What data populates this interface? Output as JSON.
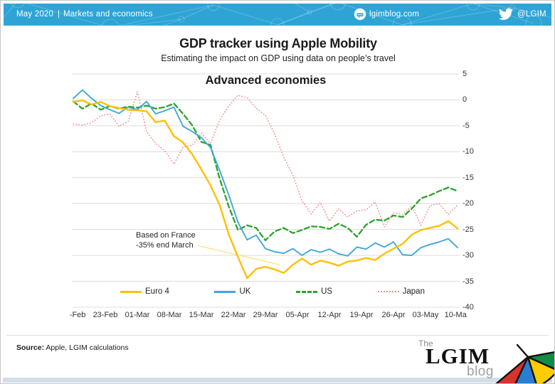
{
  "header": {
    "date": "May 2020",
    "pipe": "|",
    "section": "Markets and economics",
    "site": "lgimblog.com",
    "twitter_handle": "@LGIM"
  },
  "titles": {
    "main": "GDP tracker using Apple Mobility",
    "subtitle": "Estimating the impact on GDP using data on people’s travel"
  },
  "chart_data": {
    "type": "line",
    "title": "Advanced economies",
    "xlabel": "",
    "ylabel": "",
    "ylim": [
      -40,
      5
    ],
    "grid": "horizontal",
    "legend_position": "bottom",
    "x_unit": "days since 16-Feb-2020",
    "x_days": [
      0,
      2,
      4,
      6,
      8,
      10,
      12,
      14,
      16,
      18,
      20,
      22,
      24,
      26,
      28,
      30,
      32,
      34,
      36,
      38,
      40,
      42,
      44,
      46,
      48,
      50,
      52,
      54,
      56,
      58,
      60,
      62,
      64,
      66,
      68,
      70,
      72,
      74,
      76,
      78,
      80,
      82,
      84
    ],
    "xticks": [
      {
        "day": 0,
        "label": "16-Feb"
      },
      {
        "day": 7,
        "label": "23-Feb"
      },
      {
        "day": 14,
        "label": "01-Mar"
      },
      {
        "day": 21,
        "label": "08-Mar"
      },
      {
        "day": 28,
        "label": "15-Mar"
      },
      {
        "day": 35,
        "label": "22-Mar"
      },
      {
        "day": 42,
        "label": "29-Mar"
      },
      {
        "day": 49,
        "label": "05-Apr"
      },
      {
        "day": 56,
        "label": "12-Apr"
      },
      {
        "day": 63,
        "label": "19-Apr"
      },
      {
        "day": 70,
        "label": "26-Apr"
      },
      {
        "day": 77,
        "label": "03-May"
      },
      {
        "day": 84,
        "label": "10-May"
      }
    ],
    "yticks": [
      5,
      0,
      -5,
      -10,
      -15,
      -20,
      -25,
      -30,
      -35,
      -40
    ],
    "series": [
      {
        "name": "Japan",
        "color": "#f48c8c",
        "style": "dotted",
        "width": 1.5,
        "values": [
          -4.6,
          -4.9,
          -4.4,
          -3.1,
          -2.7,
          -5.1,
          -4.2,
          1.6,
          -6.1,
          -8.4,
          -9.8,
          -12.4,
          -9.1,
          -8.8,
          -6.4,
          -8.4,
          -3.9,
          -1.2,
          0.9,
          0.4,
          -1.6,
          -3.0,
          -6.5,
          -11.0,
          -14.5,
          -19.5,
          -22.0,
          -19.8,
          -23.4,
          -21.0,
          -22.6,
          -21.4,
          -21.2,
          -19.7,
          -24.5,
          -21.8,
          -22.1,
          -20.5,
          -24.2,
          -20.4,
          -20.0,
          -22.1,
          -20.3
        ]
      },
      {
        "name": "US",
        "color": "#28a428",
        "style": "dashed",
        "width": 2.3,
        "values": [
          -0.3,
          -1.7,
          -0.7,
          -1.9,
          -1.2,
          -1.7,
          -1.3,
          -1.5,
          -1.1,
          -1.7,
          -1.4,
          -0.7,
          -2.7,
          -4.9,
          -8.1,
          -8.7,
          -15.2,
          -20.6,
          -25.1,
          -24.2,
          -24.7,
          -27.1,
          -25.4,
          -24.7,
          -25.7,
          -25.1,
          -24.4,
          -24.5,
          -24.9,
          -23.9,
          -24.7,
          -26.4,
          -24.1,
          -23.1,
          -23.3,
          -22.3,
          -22.6,
          -21.0,
          -19.0,
          -18.4,
          -17.6,
          -16.9,
          -17.6
        ]
      },
      {
        "name": "UK",
        "color": "#41a7db",
        "style": "solid",
        "width": 1.9,
        "values": [
          0.3,
          1.9,
          0.3,
          -1.1,
          -1.9,
          -2.6,
          -1.4,
          -1.9,
          -0.3,
          -2.7,
          -2.1,
          -1.4,
          -5.1,
          -6.1,
          -7.3,
          -9.2,
          -13.6,
          -18.4,
          -23.6,
          -27.0,
          -26.1,
          -28.7,
          -29.3,
          -29.6,
          -28.7,
          -30.0,
          -28.9,
          -29.4,
          -28.8,
          -29.7,
          -30.1,
          -28.4,
          -28.8,
          -27.6,
          -28.4,
          -27.4,
          -29.9,
          -30.0,
          -28.5,
          -27.9,
          -27.4,
          -26.8,
          -28.5
        ]
      },
      {
        "name": "Euro 4",
        "color": "#ffc000",
        "style": "solid",
        "width": 2.4,
        "values": [
          -0.4,
          -0.1,
          -0.9,
          -0.4,
          -1.2,
          -1.6,
          -1.9,
          -2.0,
          -2.2,
          -4.3,
          -4.0,
          -7.0,
          -8.2,
          -10.5,
          -13.4,
          -16.5,
          -20.3,
          -26.0,
          -30.3,
          -34.4,
          -32.6,
          -32.2,
          -32.7,
          -33.4,
          -31.8,
          -30.6,
          -31.8,
          -31.0,
          -31.4,
          -32.0,
          -31.2,
          -31.0,
          -30.5,
          -30.9,
          -29.7,
          -28.7,
          -27.8,
          -26.0,
          -25.1,
          -24.7,
          -24.3,
          -23.4,
          -24.8
        ]
      }
    ],
    "legend_order": [
      "Euro 4",
      "UK",
      "US",
      "Japan"
    ],
    "annotation": {
      "line1": "Based on France",
      "line2": "-35% end March",
      "leader_color": "#ffd966",
      "leader": {
        "day1": 27.1,
        "value1": -28.1,
        "day2": 45.1,
        "value2": -31.8
      }
    }
  },
  "footer": {
    "source_label": "Source:",
    "source_text": " Apple, LGIM calculations"
  },
  "logo": {
    "the": "The",
    "lgim": "LGIM",
    "blog": "blog"
  },
  "colors": {
    "header_bg": "#2ea4d5",
    "footer_strip": "#d2dfea",
    "grid": "#dcdcdc",
    "umbrella_red": "#d8342c",
    "umbrella_blue": "#2a7dd4",
    "umbrella_yellow": "#ffcc00",
    "umbrella_green": "#118c44"
  }
}
